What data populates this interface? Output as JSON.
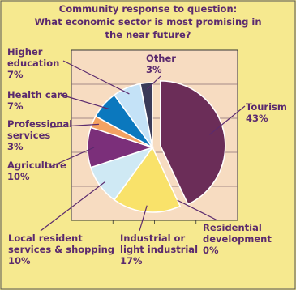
{
  "chart_data": {
    "type": "pie",
    "title": [
      "Community response to question:",
      "What economic sector is most promising in",
      "the near future?"
    ],
    "slices": [
      {
        "name": "Tourism",
        "value": 43,
        "label": "Tourism",
        "pct": "43%",
        "color": "#6b2d58"
      },
      {
        "name": "Residential development",
        "value": 0,
        "label": "Residential development",
        "pct": "0%",
        "color": "#f2c12e"
      },
      {
        "name": "Industrial or light industrial",
        "value": 17,
        "label": "Industrial or light industrial",
        "pct": "17%",
        "color": "#f9e26a"
      },
      {
        "name": "Local resident services & shopping",
        "value": 10,
        "label": "Local resident services & shopping",
        "pct": "10%",
        "color": "#cfe9f4"
      },
      {
        "name": "Agriculture",
        "value": 10,
        "label": "Agriculture",
        "pct": "10%",
        "color": "#7b2f7a"
      },
      {
        "name": "Professional services",
        "value": 3,
        "label": "Professional services",
        "pct": "3%",
        "color": "#f3a262"
      },
      {
        "name": "Health care",
        "value": 7,
        "label": "Health care",
        "pct": "7%",
        "color": "#0b78be"
      },
      {
        "name": "Higher education",
        "value": 7,
        "label": "Higher education",
        "pct": "7%",
        "color": "#c4e2f7"
      },
      {
        "name": "Other",
        "value": 3,
        "label": "Other",
        "pct": "3%",
        "color": "#3a3a58"
      }
    ],
    "labels": {
      "tourism": [
        "Tourism",
        "43%"
      ],
      "residential": [
        "Residential",
        "development",
        "0%"
      ],
      "industrial": [
        "Industrial or",
        "light industrial",
        "17%"
      ],
      "local": [
        "Local resident",
        "services & shopping",
        "10%"
      ],
      "agriculture": [
        "Agriculture",
        "10%"
      ],
      "professional": [
        "Professional",
        "services",
        "3%"
      ],
      "health": [
        "Health care",
        "7%"
      ],
      "higher": [
        "Higher",
        "education",
        "7%"
      ],
      "other": [
        "Other",
        "3%"
      ]
    },
    "grid": true,
    "colors": {
      "background": "#f6e98f",
      "plot_bg": "#f7dcc1",
      "text": "#5b2a6e",
      "frame": "#333333"
    }
  }
}
